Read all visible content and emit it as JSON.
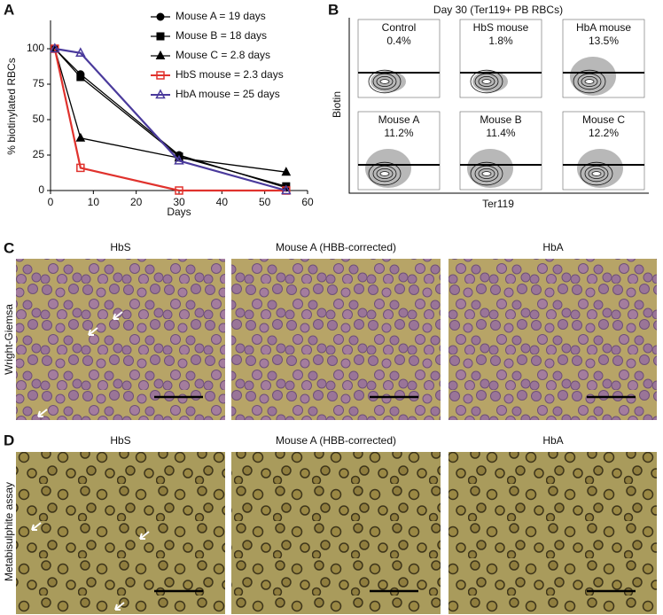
{
  "panel_labels": [
    "A",
    "B",
    "C",
    "D"
  ],
  "chart_data": {
    "type": "line",
    "xlabel": "Days",
    "ylabel": "% biotinylated RBCs",
    "x": [
      1,
      7,
      30,
      55
    ],
    "xlim": [
      0,
      60
    ],
    "ylim": [
      0,
      120
    ],
    "xticks": [
      0,
      10,
      20,
      30,
      40,
      50,
      60
    ],
    "yticks": [
      0,
      25,
      50,
      75,
      100
    ],
    "legend": "upper right",
    "series": [
      {
        "name": "Mouse A = 19 days",
        "color": "#000000",
        "marker": "circle",
        "filled": true,
        "values": [
          100,
          82,
          25,
          2
        ]
      },
      {
        "name": "Mouse B = 18 days",
        "color": "#000000",
        "marker": "square",
        "filled": true,
        "values": [
          100,
          80,
          24,
          3
        ]
      },
      {
        "name": "Mouse C = 2.8 days",
        "color": "#000000",
        "marker": "triangle",
        "filled": true,
        "values": [
          100,
          37,
          23,
          13
        ]
      },
      {
        "name": "HbS mouse = 2.3 days",
        "color": "#e0322d",
        "marker": "square",
        "filled": false,
        "values": [
          100,
          16,
          0,
          0
        ]
      },
      {
        "name": "HbA mouse = 25 days",
        "color": "#4a3a9c",
        "marker": "triangle",
        "filled": false,
        "values": [
          100,
          97,
          21,
          0
        ]
      }
    ]
  },
  "flow": {
    "title": "Day 30 (Ter119+ PB RBCs)",
    "ylabel": "Biotin",
    "xlabel": "Ter119",
    "plots": [
      {
        "label": "Control",
        "value": "0.4%"
      },
      {
        "label": "HbS mouse",
        "value": "1.8%"
      },
      {
        "label": "HbA mouse",
        "value": "13.5%"
      },
      {
        "label": "Mouse A",
        "value": "11.2%"
      },
      {
        "label": "Mouse B",
        "value": "11.4%"
      },
      {
        "label": "Mouse C",
        "value": "12.2%"
      }
    ]
  },
  "micrographs": [
    {
      "stain": "Wright-Giemsa",
      "titles": [
        "HbS",
        "Mouse A (HBB-corrected)",
        "HbA"
      ]
    },
    {
      "stain": "Metabisulphite assay",
      "titles": [
        "HbS",
        "Mouse A (HBB-corrected)",
        "HbA"
      ]
    }
  ]
}
